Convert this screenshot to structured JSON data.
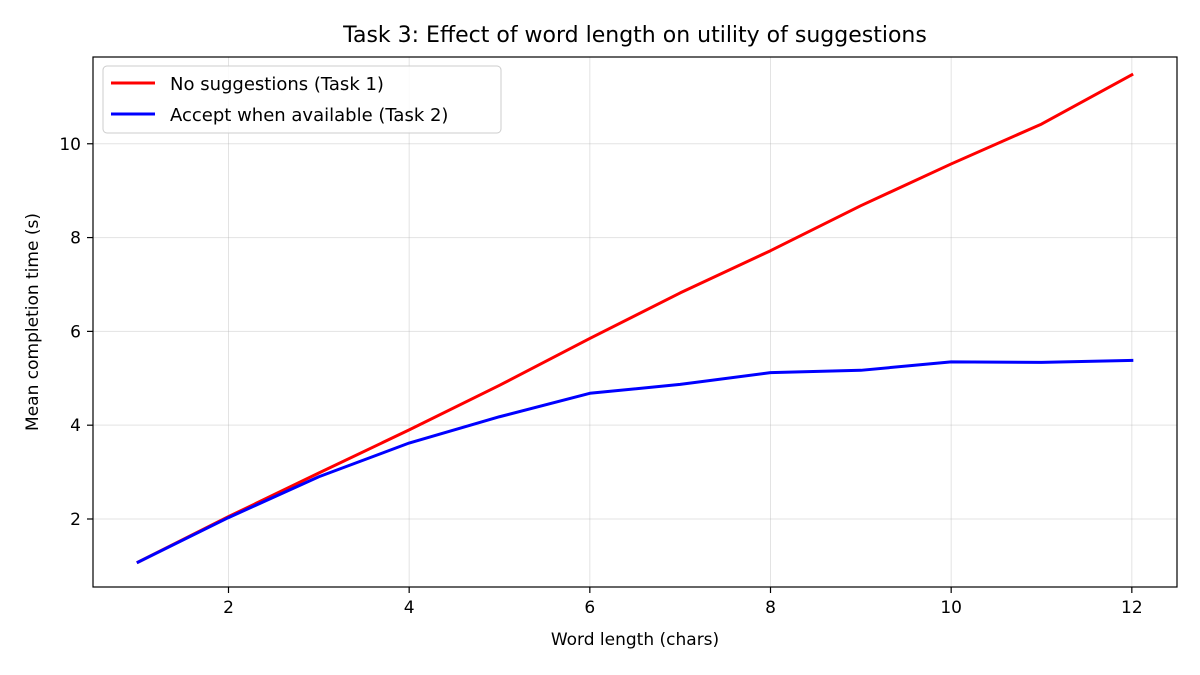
{
  "chart_data": {
    "type": "line",
    "title": "Task 3: Effect of word length on utility of suggestions",
    "xlabel": "Word length (chars)",
    "ylabel": "Mean completion time (s)",
    "xlim": [
      0.5,
      12.5
    ],
    "ylim": [
      0.55,
      11.85
    ],
    "xticks": [
      2,
      4,
      6,
      8,
      10,
      12
    ],
    "yticks": [
      2,
      4,
      6,
      8,
      10
    ],
    "grid": true,
    "legend_position": "top-left",
    "x": [
      1,
      2,
      3,
      4,
      5,
      6,
      7,
      8,
      9,
      10,
      11,
      12
    ],
    "series": [
      {
        "name": "No suggestions (Task 1)",
        "color": "#ff0000",
        "values": [
          1.08,
          2.05,
          2.98,
          3.9,
          4.85,
          5.85,
          6.82,
          7.72,
          8.68,
          9.57,
          10.42,
          11.47
        ]
      },
      {
        "name": "Accept when available (Task 2)",
        "color": "#0000ff",
        "values": [
          1.08,
          2.03,
          2.9,
          3.62,
          4.18,
          4.68,
          4.87,
          5.12,
          5.17,
          5.35,
          5.34,
          5.38
        ]
      }
    ]
  }
}
